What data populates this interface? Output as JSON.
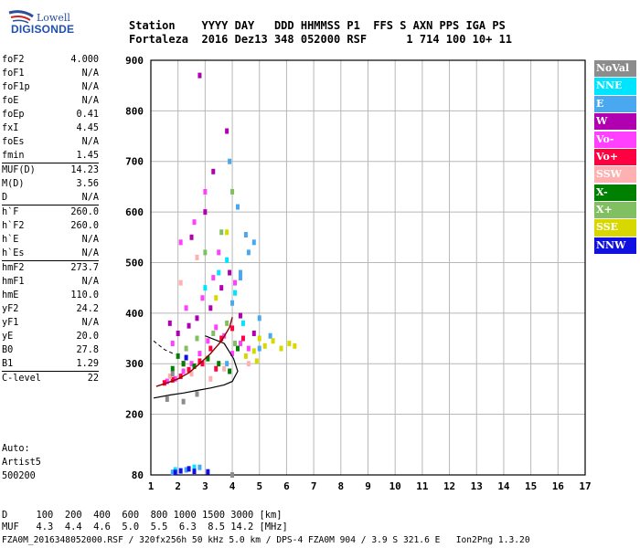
{
  "logo": {
    "line1": "Lowell",
    "line2": "DIGISONDE"
  },
  "header": {
    "line1": "Station    YYYY DAY   DDD HHMMSS P1  FFS S AXN PPS IGA PS",
    "line2": "Fortaleza  2016 Dez13 348 052000 RSF      1 714 100 10+ 11"
  },
  "params": [
    {
      "k": "foF2",
      "v": "4.000"
    },
    {
      "k": "foF1",
      "v": "N/A"
    },
    {
      "k": "foF1p",
      "v": "N/A"
    },
    {
      "k": "foE",
      "v": "N/A"
    },
    {
      "k": "foEp",
      "v": "0.41"
    },
    {
      "k": "fxI",
      "v": "4.45"
    },
    {
      "k": "foEs",
      "v": "N/A"
    },
    {
      "k": "fmin",
      "v": "1.45"
    },
    {
      "k": "MUF(D)",
      "v": "14.23"
    },
    {
      "k": "M(D)",
      "v": "3.56"
    },
    {
      "k": "D",
      "v": "N/A"
    },
    {
      "k": "h`F",
      "v": "260.0"
    },
    {
      "k": "h`F2",
      "v": "260.0"
    },
    {
      "k": "h`E",
      "v": "N/A"
    },
    {
      "k": "h`Es",
      "v": "N/A"
    },
    {
      "k": "hmF2",
      "v": "273.7"
    },
    {
      "k": "hmF1",
      "v": "N/A"
    },
    {
      "k": "hmE",
      "v": "110.0"
    },
    {
      "k": "yF2",
      "v": "24.2"
    },
    {
      "k": "yF1",
      "v": "N/A"
    },
    {
      "k": "yE",
      "v": "20.0"
    },
    {
      "k": "B0",
      "v": "27.8"
    },
    {
      "k": "B1",
      "v": "1.29"
    },
    {
      "k": "C-level",
      "v": "22"
    }
  ],
  "auto": {
    "l1": "Auto:",
    "l2": "Artist5",
    "l3": "500200"
  },
  "legend": [
    {
      "label": "NoVal",
      "color": "#8c8c8c"
    },
    {
      "label": "NNE",
      "color": "#00e5ff"
    },
    {
      "label": "E",
      "color": "#4aa8f0"
    },
    {
      "label": "W",
      "color": "#b000b0"
    },
    {
      "label": "Vo-",
      "color": "#ff40ff"
    },
    {
      "label": "Vo+",
      "color": "#ff0040"
    },
    {
      "label": "SSW",
      "color": "#ffb0b0"
    },
    {
      "label": "X-",
      "color": "#008000"
    },
    {
      "label": "X+",
      "color": "#80c060"
    },
    {
      "label": "SSE",
      "color": "#d8d800"
    },
    {
      "label": "NNW",
      "color": "#1010e0"
    }
  ],
  "footer": {
    "line1": "D     100  200  400  600  800 1000 1500 3000 [km]",
    "line2": "MUF   4.3  4.4  4.6  5.0  5.5  6.3  8.5 14.2 [MHz]",
    "line3": "FZA0M_2016348052000.RSF / 320fx256h 50 kHz 5.0 km / DPS-4 FZA0M 904 / 3.9 S 321.6 E   Ion2Png 1.3.20"
  },
  "chart_data": {
    "type": "scatter",
    "title": "",
    "xlabel": "",
    "ylabel": "",
    "xlim": [
      1,
      17
    ],
    "ylim": [
      80,
      900
    ],
    "xticks": [
      1,
      2,
      3,
      4,
      5,
      6,
      7,
      8,
      9,
      10,
      11,
      12,
      13,
      14,
      15,
      16,
      17
    ],
    "yticks": [
      80,
      200,
      300,
      400,
      500,
      600,
      700,
      800,
      900
    ],
    "series": [
      {
        "legend_index": 4,
        "points": [
          [
            1.6,
            265
          ],
          [
            1.9,
            270
          ],
          [
            2.2,
            285
          ],
          [
            2.5,
            300
          ],
          [
            2.8,
            320
          ],
          [
            3.1,
            345
          ],
          [
            3.4,
            372
          ],
          [
            3.7,
            355
          ],
          [
            4.0,
            320
          ],
          [
            4.3,
            340
          ],
          [
            2.1,
            540
          ],
          [
            2.6,
            580
          ],
          [
            3.0,
            640
          ],
          [
            3.5,
            520
          ],
          [
            4.1,
            460
          ],
          [
            2.3,
            410
          ],
          [
            2.9,
            430
          ],
          [
            3.3,
            470
          ],
          [
            1.8,
            340
          ],
          [
            4.6,
            330
          ]
        ]
      },
      {
        "legend_index": 3,
        "points": [
          [
            2.0,
            360
          ],
          [
            2.4,
            375
          ],
          [
            2.7,
            390
          ],
          [
            3.2,
            410
          ],
          [
            3.6,
            450
          ],
          [
            3.9,
            480
          ],
          [
            2.5,
            550
          ],
          [
            3.0,
            600
          ],
          [
            3.3,
            680
          ],
          [
            3.8,
            760
          ],
          [
            1.7,
            380
          ],
          [
            2.8,
            870
          ],
          [
            4.3,
            395
          ],
          [
            4.8,
            360
          ]
        ]
      },
      {
        "legend_index": 5,
        "points": [
          [
            1.5,
            262
          ],
          [
            1.8,
            268
          ],
          [
            2.1,
            275
          ],
          [
            2.4,
            288
          ],
          [
            2.8,
            305
          ],
          [
            3.2,
            330
          ],
          [
            3.6,
            350
          ],
          [
            4.0,
            370
          ],
          [
            4.4,
            350
          ],
          [
            2.9,
            300
          ],
          [
            3.4,
            290
          ],
          [
            2.2,
            300
          ]
        ]
      },
      {
        "legend_index": 2,
        "points": [
          [
            3.8,
            300
          ],
          [
            4.0,
            420
          ],
          [
            4.3,
            470
          ],
          [
            4.6,
            520
          ],
          [
            4.8,
            540
          ],
          [
            4.2,
            610
          ],
          [
            3.9,
            700
          ],
          [
            5.0,
            330
          ],
          [
            5.4,
            355
          ],
          [
            5.0,
            390
          ],
          [
            1.8,
            85
          ],
          [
            2.3,
            90
          ],
          [
            2.8,
            95
          ],
          [
            4.3,
            480
          ],
          [
            4.5,
            555
          ]
        ]
      },
      {
        "legend_index": 1,
        "points": [
          [
            3.0,
            450
          ],
          [
            3.5,
            480
          ],
          [
            4.1,
            440
          ],
          [
            4.4,
            380
          ],
          [
            1.9,
            90
          ],
          [
            2.6,
            95
          ],
          [
            3.8,
            505
          ]
        ]
      },
      {
        "legend_index": 7,
        "points": [
          [
            1.8,
            290
          ],
          [
            2.2,
            300
          ],
          [
            2.6,
            295
          ],
          [
            3.1,
            310
          ],
          [
            3.5,
            300
          ],
          [
            3.9,
            285
          ],
          [
            4.2,
            330
          ],
          [
            2.0,
            315
          ]
        ]
      },
      {
        "legend_index": 8,
        "points": [
          [
            2.3,
            330
          ],
          [
            2.7,
            350
          ],
          [
            3.3,
            360
          ],
          [
            3.8,
            380
          ],
          [
            4.1,
            340
          ],
          [
            3.0,
            520
          ],
          [
            3.6,
            560
          ],
          [
            4.0,
            640
          ]
        ]
      },
      {
        "legend_index": 9,
        "points": [
          [
            4.5,
            315
          ],
          [
            4.8,
            325
          ],
          [
            5.2,
            335
          ],
          [
            5.5,
            345
          ],
          [
            5.8,
            330
          ],
          [
            6.1,
            340
          ],
          [
            6.3,
            335
          ],
          [
            5.0,
            350
          ],
          [
            4.9,
            305
          ],
          [
            3.4,
            430
          ],
          [
            3.8,
            560
          ]
        ]
      },
      {
        "legend_index": 6,
        "points": [
          [
            1.7,
            275
          ],
          [
            2.5,
            280
          ],
          [
            3.2,
            270
          ],
          [
            3.7,
            290
          ],
          [
            2.1,
            460
          ],
          [
            2.7,
            510
          ],
          [
            4.6,
            300
          ]
        ]
      },
      {
        "legend_index": 10,
        "points": [
          [
            1.9,
            85
          ],
          [
            2.1,
            88
          ],
          [
            2.6,
            87
          ],
          [
            3.1,
            86
          ],
          [
            2.3,
            312
          ],
          [
            2.4,
            92
          ]
        ]
      },
      {
        "legend_index": 0,
        "points": [
          [
            1.6,
            230
          ],
          [
            2.2,
            225
          ],
          [
            1.8,
            280
          ],
          [
            2.7,
            240
          ],
          [
            4.0,
            80
          ]
        ]
      }
    ],
    "profile_line": [
      [
        1.1,
        232
      ],
      [
        1.7,
        238
      ],
      [
        2.2,
        242
      ],
      [
        2.7,
        247
      ],
      [
        3.2,
        252
      ],
      [
        3.7,
        258
      ],
      [
        4.0,
        265
      ],
      [
        4.2,
        285
      ],
      [
        4.05,
        310
      ],
      [
        3.7,
        340
      ],
      [
        3.0,
        355
      ]
    ],
    "fitted_trace": [
      [
        1.2,
        255
      ],
      [
        1.6,
        262
      ],
      [
        2.0,
        270
      ],
      [
        2.4,
        282
      ],
      [
        2.8,
        300
      ],
      [
        3.2,
        320
      ],
      [
        3.6,
        345
      ],
      [
        3.9,
        372
      ],
      [
        4.0,
        392
      ]
    ],
    "dashed_trace": [
      [
        1.1,
        345
      ],
      [
        1.5,
        328
      ],
      [
        1.9,
        318
      ]
    ]
  }
}
